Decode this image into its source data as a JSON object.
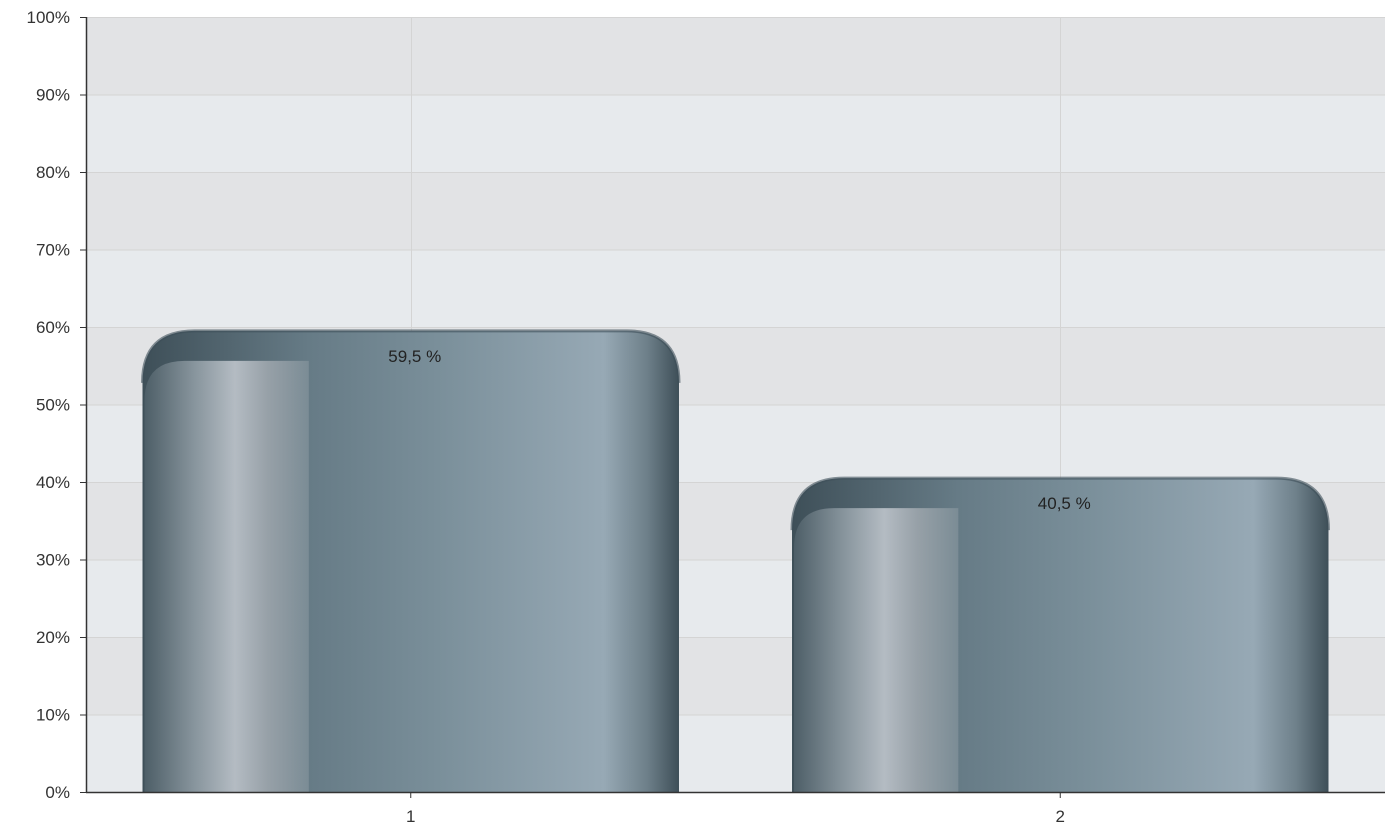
{
  "chart_data": {
    "type": "bar",
    "categories": [
      "1",
      "2"
    ],
    "values": [
      59.5,
      40.5
    ],
    "value_labels": [
      "59,5 %",
      "40,5 %"
    ],
    "y_ticks": [
      0,
      10,
      20,
      30,
      40,
      50,
      60,
      70,
      80,
      90,
      100
    ],
    "y_tick_labels": [
      "0%",
      "10%",
      "20%",
      "30%",
      "40%",
      "50%",
      "60%",
      "70%",
      "80%",
      "90%",
      "100%"
    ],
    "ylim": [
      0,
      100
    ],
    "title": "",
    "xlabel": "",
    "ylabel": "",
    "grid": true,
    "legend": "none",
    "colors": {
      "plot_band_light": "#e7eaed",
      "plot_band_dark": "#e2e3e5",
      "grid_line": "#d4d4d4",
      "axis_line": "#333333",
      "bar_dark": "#3e4f58",
      "bar_mid": "#667b86",
      "bar_light": "#97a9b5",
      "bar_highlight": "#b9c0c7",
      "label_text": "#222222"
    }
  }
}
